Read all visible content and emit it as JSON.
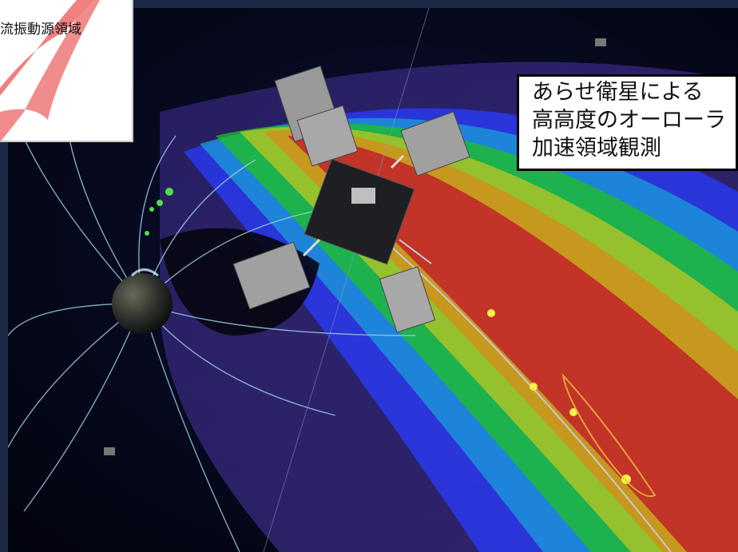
{
  "callouts": {
    "left_fragment": "流振動源領域",
    "right_title": [
      "あらせ衛星による",
      "高高度のオーローラ",
      "加速領域観測"
    ]
  },
  "colors": {
    "band_blue": "#2a3cff",
    "band_cyan": "#1aa6d8",
    "band_green": "#1ec21e",
    "band_yellow": "#c8c820",
    "band_orange": "#d88a1a",
    "band_red": "#c01a2a",
    "field_lines": "#9fd3e6",
    "callout_accent": "#f08080"
  },
  "icons": {
    "satellite": "satellite-icon",
    "planet": "earth-icon"
  }
}
